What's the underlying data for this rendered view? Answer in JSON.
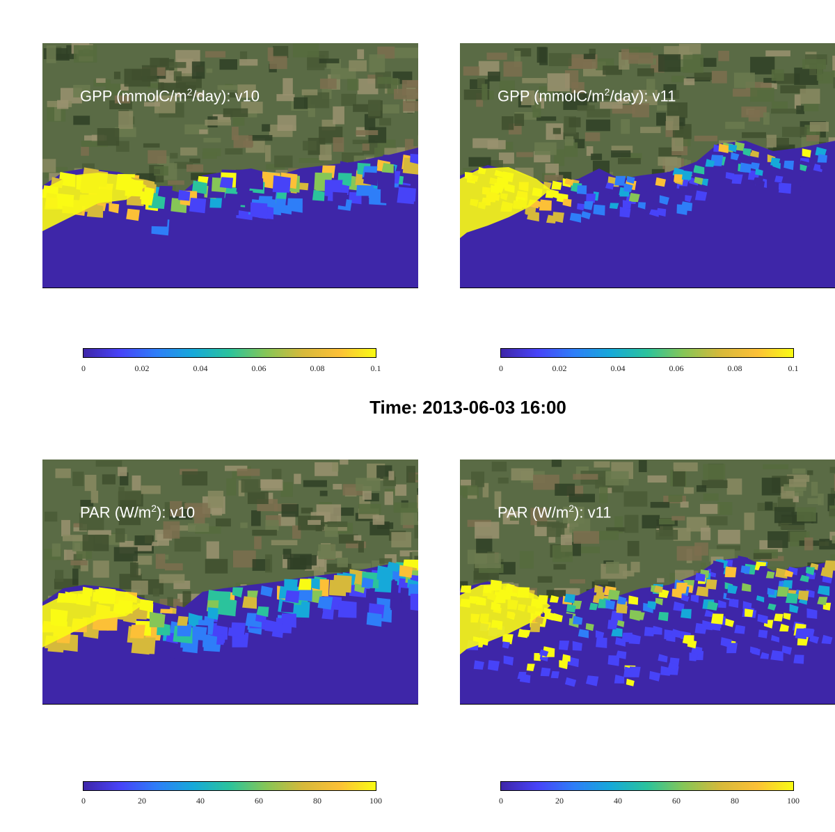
{
  "figure_title": "Time: 2013-06-03 16:00",
  "colors": {
    "colormap": [
      "#3e26a8",
      "#4743f8",
      "#2e7ef8",
      "#16a9d9",
      "#2bc39c",
      "#86c657",
      "#d6b93b",
      "#fcc037",
      "#f9fb14"
    ],
    "water_low": "#3e26a8"
  },
  "chart_data": [
    {
      "type": "heatmap",
      "title_main": "GPP (mmolC/m",
      "title_sup": "2",
      "title_tail": "/day): v10",
      "colorbar": {
        "range": [
          0,
          0.1
        ],
        "ticks": [
          "0",
          "0.02",
          "0.04",
          "0.06",
          "0.08",
          "0.1"
        ]
      },
      "background": "satellite-image"
    },
    {
      "type": "heatmap",
      "title_main": "GPP (mmolC/m",
      "title_sup": "2",
      "title_tail": "/day): v11",
      "colorbar": {
        "range": [
          0,
          0.1
        ],
        "ticks": [
          "0",
          "0.02",
          "0.04",
          "0.06",
          "0.08",
          "0.1"
        ]
      },
      "background": "satellite-image"
    },
    {
      "type": "heatmap",
      "title_main": "PAR (W/m",
      "title_sup": "2",
      "title_tail": "): v10",
      "colorbar": {
        "range": [
          0,
          100
        ],
        "ticks": [
          "0",
          "20",
          "40",
          "60",
          "80",
          "100"
        ]
      },
      "background": "satellite-image"
    },
    {
      "type": "heatmap",
      "title_main": "PAR (W/m",
      "title_sup": "2",
      "title_tail": "): v11",
      "colorbar": {
        "range": [
          0,
          100
        ],
        "ticks": [
          "0",
          "20",
          "40",
          "60",
          "80",
          "100"
        ]
      },
      "background": "satellite-image"
    }
  ]
}
